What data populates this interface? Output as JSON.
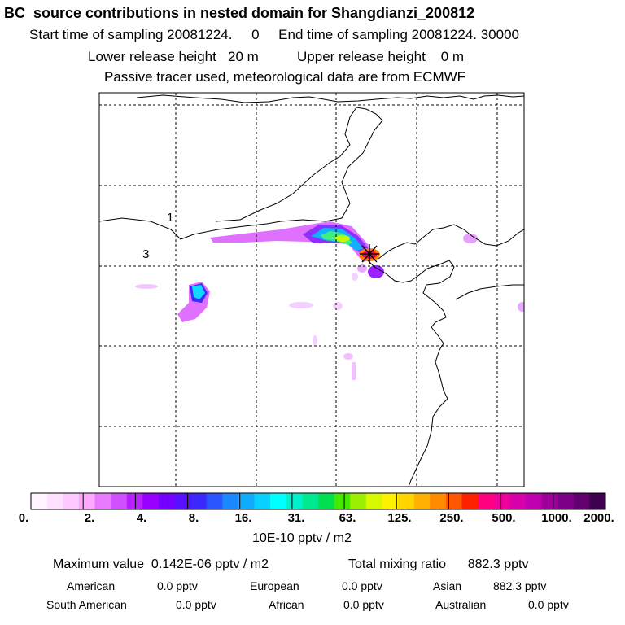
{
  "header": {
    "title": "BC  source contributions in nested domain for Shangdianzi_200812",
    "sampling_line": "Start time of sampling 20081224.     0     End time of sampling 20081224. 30000",
    "release_line": "Lower release height   20 m          Upper release height    0 m",
    "tracer_line": "Passive tracer used, meteorological data are from ECMWF"
  },
  "map": {
    "contour_labels": [
      "1",
      "3"
    ]
  },
  "colorbar": {
    "colors": [
      "#fff4ff",
      "#ffe0ff",
      "#ffc8ff",
      "#ffa8ff",
      "#e87aff",
      "#d050ff",
      "#b820ff",
      "#9a00ff",
      "#7400ff",
      "#5a10ff",
      "#3c28ff",
      "#2a56ff",
      "#1a88ff",
      "#10aaff",
      "#08d0ff",
      "#00ffff",
      "#00f2cc",
      "#00e890",
      "#00e050",
      "#44e800",
      "#99f000",
      "#d8f800",
      "#fff000",
      "#ffd400",
      "#ffb000",
      "#ff8c00",
      "#ff5800",
      "#ff2000",
      "#ff0080",
      "#f0009c",
      "#d800a8",
      "#c000b0",
      "#9c0099",
      "#7e0088",
      "#620070",
      "#400050"
    ],
    "tick_labels": [
      "0.",
      "2.",
      "4.",
      "8.",
      "16.",
      "31.",
      "63.",
      "125.",
      "250.",
      "500.",
      "1000.",
      "2000."
    ],
    "unit_label": "10E-10 pptv / m2"
  },
  "stats": {
    "max_text": "Maximum value  0.142E-06 pptv / m2",
    "total_text": "Total mixing ratio      882.3 pptv",
    "regions": [
      {
        "name": "American",
        "value": "0.0 pptv"
      },
      {
        "name": "European",
        "value": "0.0 pptv"
      },
      {
        "name": "Asian",
        "value": "882.3 pptv"
      },
      {
        "name": "South American",
        "value": "0.0 pptv"
      },
      {
        "name": "African",
        "value": "0.0 pptv"
      },
      {
        "name": "Australian",
        "value": "0.0 pptv"
      }
    ]
  }
}
